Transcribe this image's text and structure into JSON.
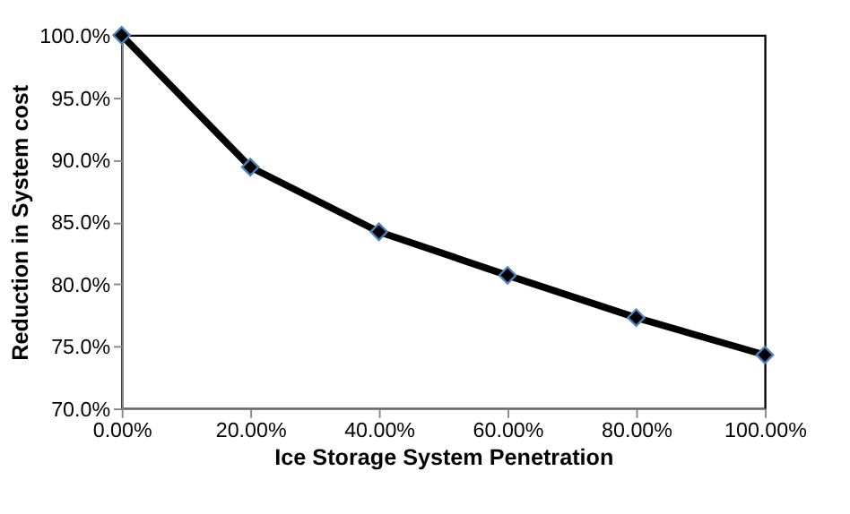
{
  "chart_data": {
    "type": "line",
    "xlabel": "Ice Storage System Penetration",
    "ylabel": "Reduction in System cost",
    "x": [
      0,
      20,
      40,
      60,
      80,
      100
    ],
    "series": [
      {
        "color": "#000000",
        "values": [
          100,
          89.4,
          84.2,
          80.7,
          77.3,
          74.3
        ]
      }
    ],
    "xlim": [
      0,
      100
    ],
    "ylim": [
      70,
      100
    ],
    "xticks": [
      {
        "value": 0,
        "label": "0.00%"
      },
      {
        "value": 20,
        "label": "20.00%"
      },
      {
        "value": 40,
        "label": "40.00%"
      },
      {
        "value": 60,
        "label": "60.00%"
      },
      {
        "value": 80,
        "label": "80.00%"
      },
      {
        "value": 100,
        "label": "100.00%"
      }
    ],
    "yticks": [
      {
        "value": 70,
        "label": "70.0%"
      },
      {
        "value": 75,
        "label": "75.0%"
      },
      {
        "value": 80,
        "label": "80.0%"
      },
      {
        "value": 85,
        "label": "85.0%"
      },
      {
        "value": 90,
        "label": "90.0%"
      },
      {
        "value": 95,
        "label": "95.0%"
      },
      {
        "value": 100,
        "label": "100.0%"
      }
    ],
    "grid": false,
    "marker": "diamond",
    "line_style": "solid"
  }
}
